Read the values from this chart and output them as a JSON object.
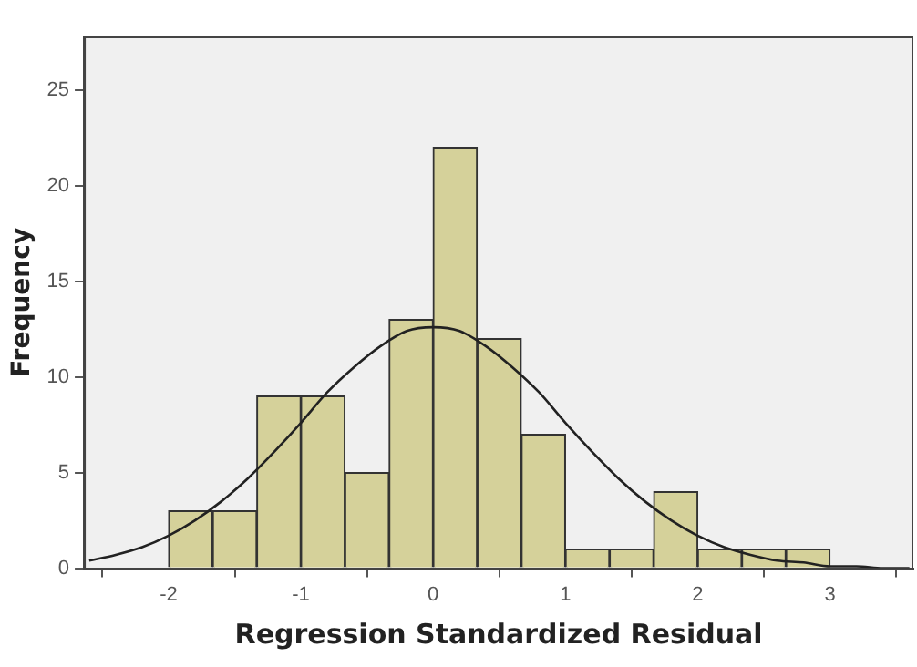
{
  "chart_data": {
    "type": "histogram",
    "xlabel": "Regression Standardized Residual",
    "ylabel": "Frequency",
    "bins": [
      -2,
      -1.667,
      -1.333,
      -1,
      -0.667,
      -0.333,
      0,
      0.333,
      0.667,
      1,
      1.333,
      1.667,
      2,
      2.333,
      2.667,
      3
    ],
    "values": [
      3,
      3,
      9,
      9,
      5,
      13,
      22,
      12,
      7,
      1,
      1,
      4,
      1,
      1,
      1
    ],
    "color": "#d5d19a",
    "series": [
      {
        "type": "line",
        "color": "#222222",
        "x": [
          -2.6,
          -2.4,
          -2.2,
          -2,
          -1.8,
          -1.6,
          -1.4,
          -1.2,
          -1,
          -0.8,
          -0.6,
          -0.4,
          -0.2,
          0,
          0.2,
          0.4,
          0.6,
          0.8,
          1,
          1.2,
          1.4,
          1.6,
          1.8,
          2,
          2.2,
          2.4,
          2.6,
          2.8,
          3,
          3.2,
          3.4,
          3.6
        ],
        "values": [
          0.4,
          0.7,
          1.1,
          1.7,
          2.5,
          3.5,
          4.7,
          6.1,
          7.6,
          9.2,
          10.5,
          11.6,
          12.4,
          12.6,
          12.4,
          11.6,
          10.5,
          9.2,
          7.6,
          6.1,
          4.7,
          3.5,
          2.5,
          1.7,
          1.1,
          0.7,
          0.4,
          0.3,
          0.1,
          0.1,
          0,
          0
        ]
      }
    ],
    "xlim": [
      -2.64,
      3.63
    ],
    "ylim": [
      0,
      27.8
    ],
    "xticks": [
      -2,
      -1,
      0,
      1,
      2,
      3
    ],
    "yticks": [
      0,
      5,
      10,
      15,
      20,
      25
    ],
    "grid": false,
    "legend": false,
    "marker": "none"
  }
}
